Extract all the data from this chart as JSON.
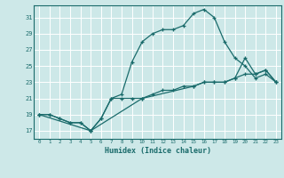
{
  "background_color": "#cde8e8",
  "grid_color": "#b0d8d8",
  "line_color": "#1a6b6b",
  "xlabel": "Humidex (Indice chaleur)",
  "xlim": [
    -0.5,
    23.5
  ],
  "ylim": [
    16.0,
    32.5
  ],
  "yticks": [
    17,
    19,
    21,
    23,
    25,
    27,
    29,
    31
  ],
  "xticks": [
    0,
    1,
    2,
    3,
    4,
    5,
    6,
    7,
    8,
    9,
    10,
    11,
    12,
    13,
    14,
    15,
    16,
    17,
    18,
    19,
    20,
    21,
    22,
    23
  ],
  "series": [
    {
      "x": [
        0,
        1,
        2,
        3,
        4,
        5,
        6,
        7,
        8,
        9,
        10,
        11,
        12,
        13,
        14,
        15,
        16,
        17,
        18,
        19,
        20,
        21,
        22,
        23
      ],
      "y": [
        19,
        19,
        18.5,
        18,
        18,
        17,
        18.5,
        21,
        21.5,
        25.5,
        28,
        29,
        29.5,
        29.5,
        30,
        31.5,
        32,
        31,
        28,
        26,
        25,
        23.5,
        24,
        23
      ]
    },
    {
      "x": [
        0,
        1,
        2,
        3,
        4,
        5,
        6,
        7,
        8,
        9,
        10,
        11,
        12,
        13,
        14,
        15,
        16,
        17,
        18,
        19,
        20,
        21,
        22,
        23
      ],
      "y": [
        19,
        19,
        18.5,
        18,
        18,
        17,
        18.5,
        21,
        21,
        21,
        21,
        21.5,
        22,
        22,
        22.5,
        22.5,
        23,
        23,
        23,
        23.5,
        24,
        24,
        24.5,
        23
      ]
    },
    {
      "x": [
        0,
        5,
        10,
        15,
        16,
        17,
        18,
        19,
        20,
        21,
        22,
        23
      ],
      "y": [
        19,
        17,
        21,
        22.5,
        23,
        23,
        23,
        23.5,
        26,
        24,
        24.5,
        23
      ]
    }
  ]
}
